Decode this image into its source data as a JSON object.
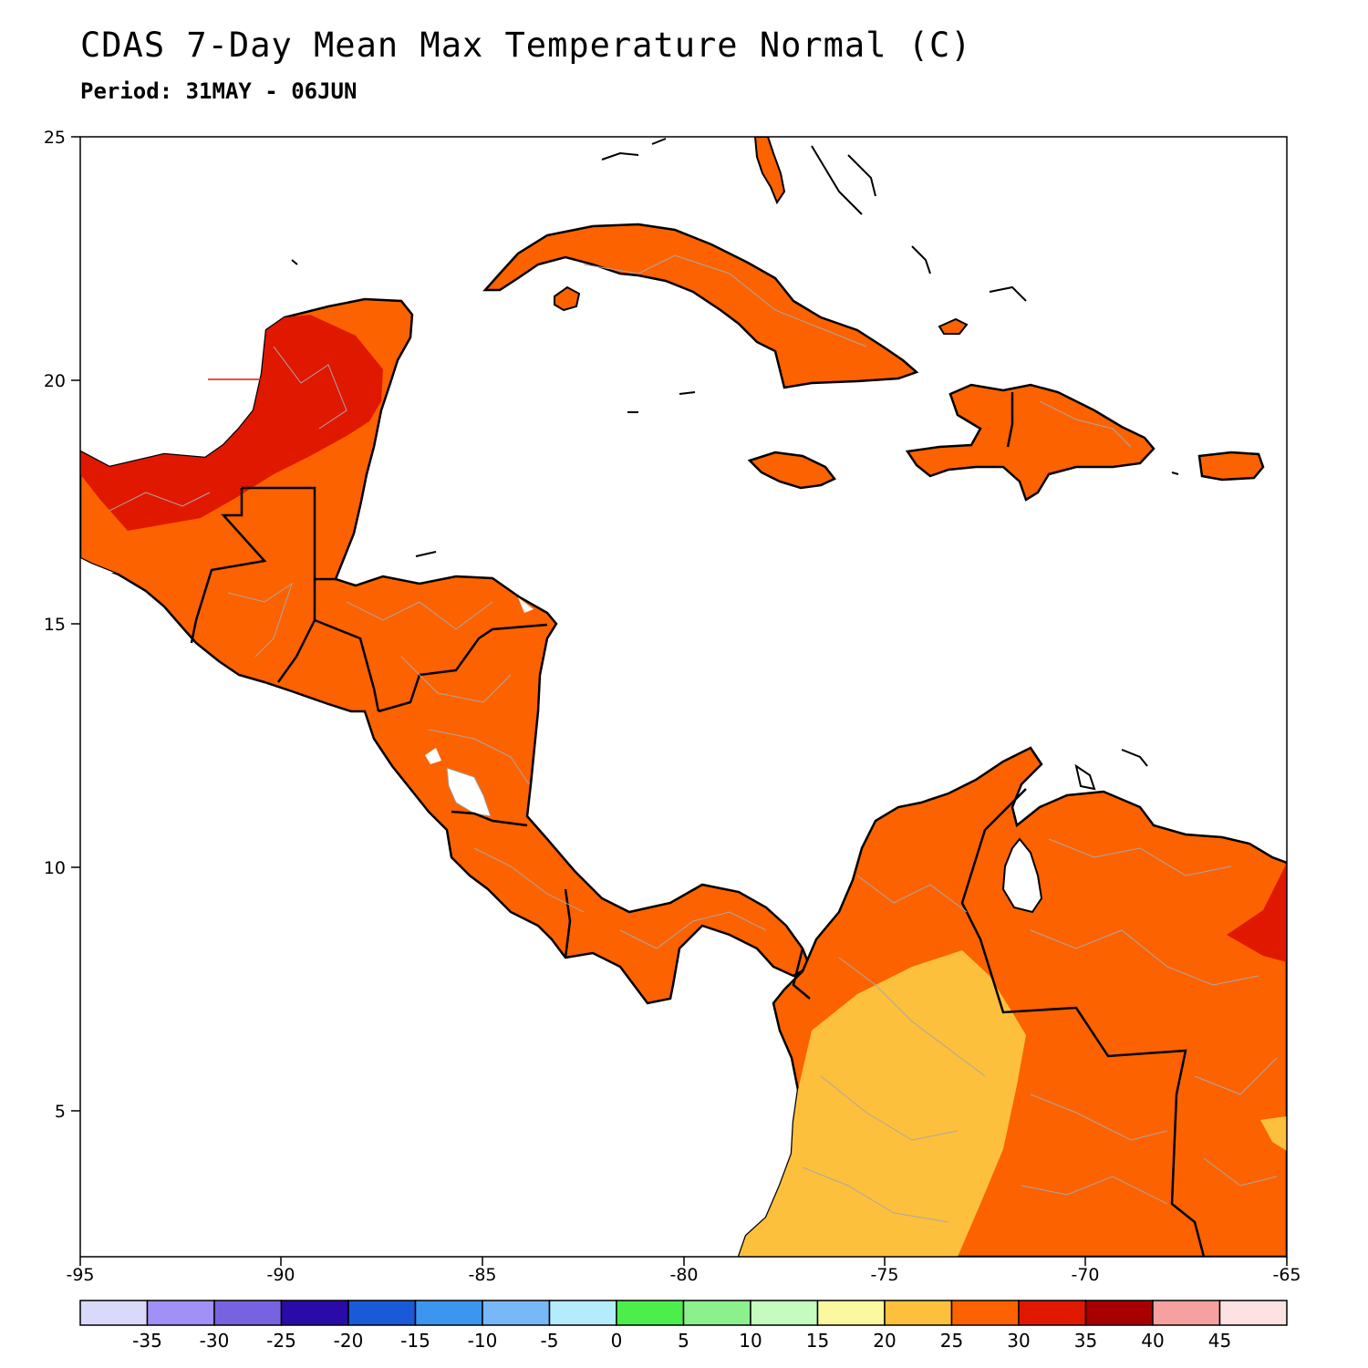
{
  "title": "CDAS 7-Day Mean Max Temperature Normal (C)",
  "subtitle": "Period: 31MAY - 06JUN",
  "map": {
    "lon_range": [
      -95,
      -65
    ],
    "lat_range": [
      2.5,
      25
    ],
    "x_ticks": [
      "-95",
      "-90",
      "-85",
      "-80",
      "-75",
      "-70",
      "-65"
    ],
    "y_ticks": [
      "25",
      "20",
      "15",
      "10",
      "5"
    ],
    "region": "Central America and Caribbean",
    "countries_outlined": true,
    "admin_boundaries": true
  },
  "colorbar": {
    "labels": [
      "-35",
      "-30",
      "-25",
      "-20",
      "-15",
      "-10",
      "-5",
      "0",
      "5",
      "10",
      "15",
      "20",
      "25",
      "30",
      "35",
      "40",
      "45"
    ],
    "colors": [
      "#d9d9fb",
      "#a090f8",
      "#7762e0",
      "#2a0aa8",
      "#1a5ad8",
      "#3c96f0",
      "#78b8f8",
      "#b4ecfc",
      "#4cee4c",
      "#8cf08c",
      "#c4fcc0",
      "#fcf8a0",
      "#fcc03c",
      "#fc6200",
      "#e01800",
      "#a80000",
      "#f6a0a0",
      "#fde2e2"
    ]
  },
  "legend_colors": {
    "20-25": "#fcc03c",
    "25-30": "#fc6200",
    "30-35": "#e01800"
  }
}
